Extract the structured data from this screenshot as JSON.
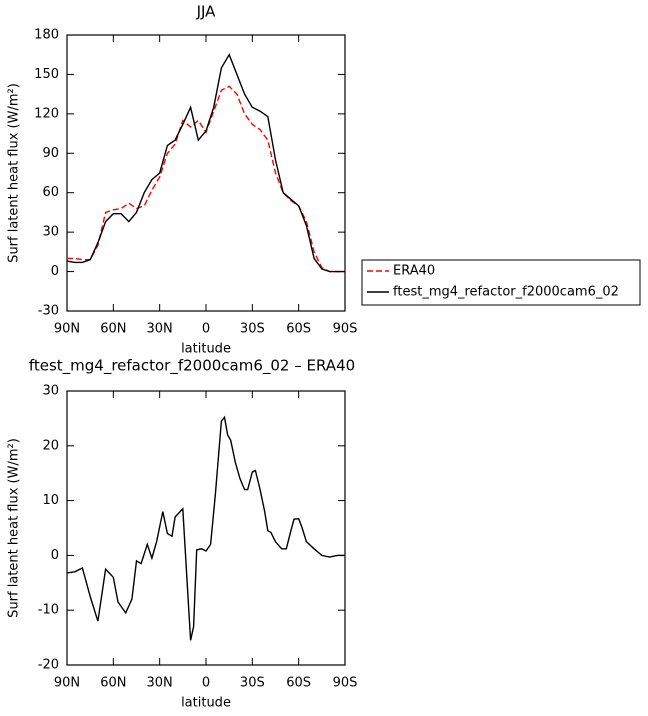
{
  "chart_data": [
    {
      "type": "line",
      "title": "JJA",
      "xlabel": "latitude",
      "ylabel": "Surf latent heat flux (W/m²)",
      "xlim": [
        90,
        -90
      ],
      "xticks": [
        {
          "value": 90,
          "label": "90N"
        },
        {
          "value": 60,
          "label": "60N"
        },
        {
          "value": 30,
          "label": "30N"
        },
        0,
        {
          "value": -30,
          "label": "30S"
        },
        {
          "value": -60,
          "label": "60S"
        },
        {
          "value": -90,
          "label": "90S"
        }
      ],
      "ylim": [
        -30,
        180
      ],
      "yticks": [
        -30,
        0,
        30,
        60,
        90,
        120,
        150,
        180
      ],
      "legend": "outside-right",
      "x": [
        90,
        85,
        80,
        75,
        70,
        65,
        60,
        55,
        50,
        45,
        40,
        35,
        30,
        25,
        20,
        15,
        10,
        5,
        0,
        -5,
        -10,
        -15,
        -20,
        -25,
        -30,
        -35,
        -40,
        -45,
        -50,
        -55,
        -60,
        -65,
        -70,
        -75,
        -80,
        -85,
        -90
      ],
      "series": [
        {
          "name": "ERA40",
          "color": "#ff0000",
          "line_style": "dashed",
          "values": [
            10,
            10,
            9,
            9,
            20,
            45,
            47,
            48,
            52,
            48,
            50,
            62,
            72,
            90,
            97,
            115,
            110,
            115,
            106,
            122,
            138,
            141,
            135,
            120,
            112,
            108,
            100,
            75,
            60,
            54,
            50,
            38,
            15,
            3,
            0,
            0,
            0
          ]
        },
        {
          "name": "ftest_mg4_refactor_f2000cam6_02",
          "color": "#000000",
          "line_style": "solid",
          "values": [
            8,
            7,
            7,
            9,
            22,
            38,
            44,
            44,
            38,
            45,
            60,
            70,
            75,
            96,
            100,
            112,
            125,
            100,
            107,
            125,
            155,
            165,
            150,
            135,
            125,
            122,
            118,
            85,
            60,
            55,
            50,
            35,
            10,
            2,
            0,
            0,
            0
          ]
        }
      ]
    },
    {
      "type": "line",
      "title": "ftest_mg4_refactor_f2000cam6_02 – ERA40",
      "xlabel": "latitude",
      "ylabel": "Surf latent heat flux (W/m²)",
      "xlim": [
        90,
        -90
      ],
      "xticks": [
        {
          "value": 90,
          "label": "90N"
        },
        {
          "value": 60,
          "label": "60N"
        },
        {
          "value": 30,
          "label": "30N"
        },
        0,
        {
          "value": -30,
          "label": "30S"
        },
        {
          "value": -60,
          "label": "60S"
        },
        {
          "value": -90,
          "label": "90S"
        }
      ],
      "ylim": [
        -20,
        30
      ],
      "yticks": [
        -20,
        -10,
        0,
        10,
        20,
        30
      ],
      "x": [
        90,
        85,
        80,
        75,
        70,
        65,
        60,
        57,
        52,
        48,
        45,
        42,
        38,
        35,
        32,
        28,
        25,
        22,
        20,
        15,
        12,
        10,
        8,
        6,
        3,
        0,
        -3,
        -6,
        -10,
        -12,
        -14,
        -16,
        -19,
        -22,
        -25,
        -27,
        -30,
        -32,
        -35,
        -38,
        -40,
        -42,
        -45,
        -49,
        -52,
        -55,
        -57,
        -60,
        -62,
        -65,
        -70,
        -75,
        -80,
        -85,
        -90
      ],
      "series": [
        {
          "color": "#000000",
          "line_style": "solid",
          "values": [
            -3.2,
            -3,
            -2.3,
            -7.5,
            -12,
            -2.5,
            -4,
            -8.5,
            -10.5,
            -8,
            -1,
            -1.5,
            2,
            -0.5,
            2.5,
            8,
            4,
            3.5,
            7,
            8.5,
            -6,
            -15.5,
            -13,
            1,
            1.2,
            0.8,
            2,
            11,
            24.5,
            25.2,
            22,
            21,
            17,
            14,
            12,
            12,
            15.2,
            15.5,
            12,
            8,
            4.5,
            4.2,
            2.5,
            1.2,
            1.2,
            4.5,
            6.6,
            6.7,
            5.2,
            2.5,
            1.2,
            0,
            -0.3,
            0,
            0
          ]
        }
      ]
    }
  ]
}
